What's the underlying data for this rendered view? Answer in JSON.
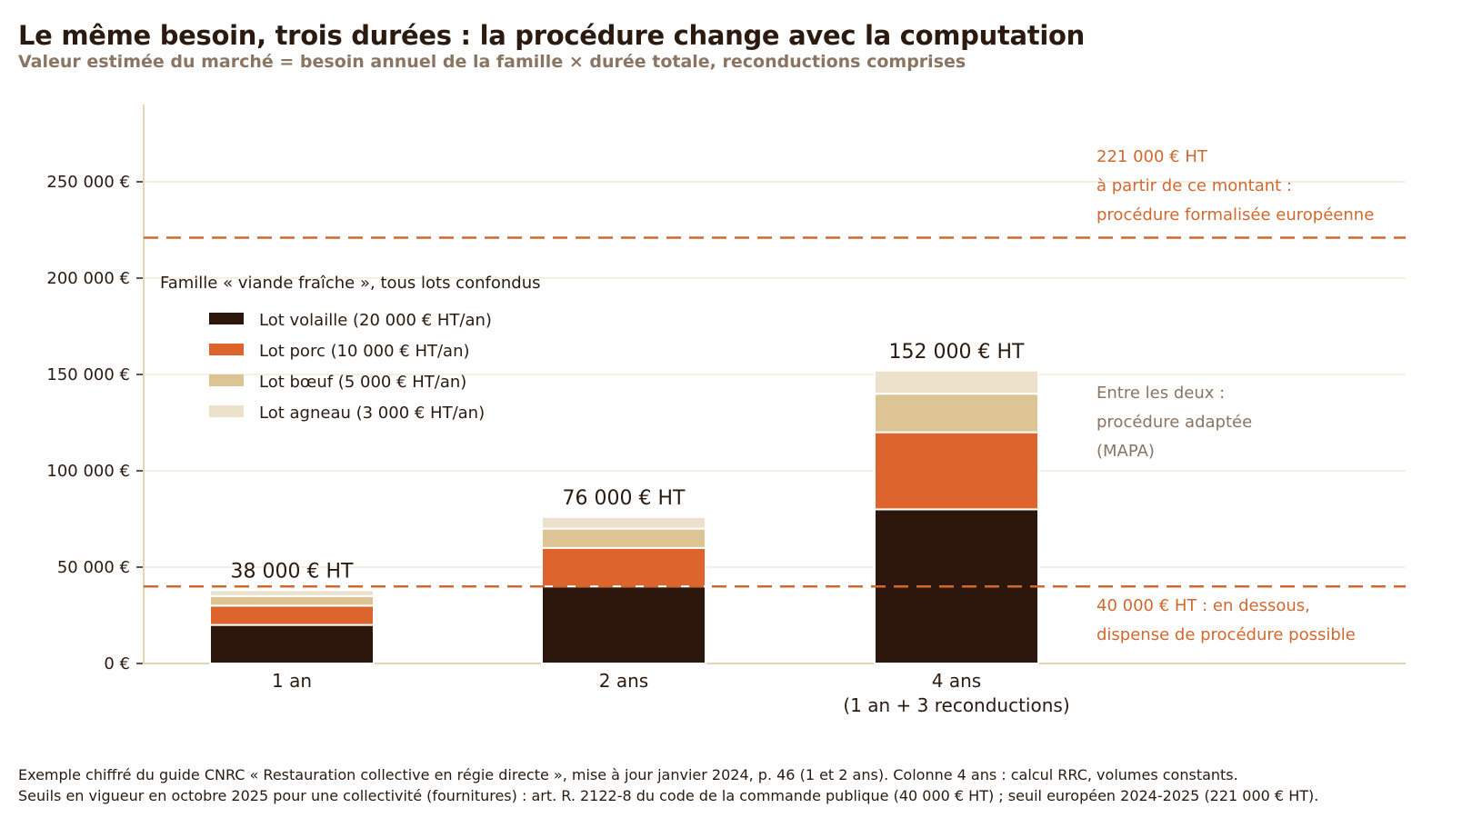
{
  "title": "Le même besoin, trois durées : la procédure change avec la computation",
  "subtitle": "Valeur estimée du marché = besoin annuel de la famille × durée totale, reconductions comprises",
  "footer": {
    "line1": "Exemple chiffré du guide CNRC « Restauration collective en régie directe », mise à jour janvier 2024, p. 46 (1 et 2 ans). Colonne 4 ans : calcul RRC, volumes constants.",
    "line2": "Seuils en vigueur en octobre 2025 pour une collectivité (fournitures) : art. R. 2122-8 du code de la commande publique (40 000 € HT) ; seuil européen 2024-2025 (221 000 € HT)."
  },
  "colors": {
    "volaille": "#2d170c",
    "porc": "#dd642c",
    "boeuf": "#dcc495",
    "agneau": "#ece2cb",
    "threshold": "#d0692f",
    "grid": "#ece6d2",
    "axis": "#dcc89a",
    "muted": "#8a7563"
  },
  "chart_data": {
    "type": "bar",
    "stacked": true,
    "categories": [
      [
        "1 an"
      ],
      [
        "2 ans"
      ],
      [
        "4 ans",
        "(1 an + 3 reconductions)"
      ]
    ],
    "series": [
      {
        "name": "Lot volaille (20 000 € HT/an)",
        "key": "volaille",
        "values": [
          20000,
          40000,
          80000
        ]
      },
      {
        "name": "Lot porc (10 000 € HT/an)",
        "key": "porc",
        "values": [
          10000,
          20000,
          40000
        ]
      },
      {
        "name": "Lot bœuf (5 000 € HT/an)",
        "key": "boeuf",
        "values": [
          5000,
          10000,
          20000
        ]
      },
      {
        "name": "Lot agneau (3 000 € HT/an)",
        "key": "agneau",
        "values": [
          3000,
          6000,
          12000
        ]
      }
    ],
    "totals": [
      "38 000 € HT",
      "76 000 € HT",
      "152 000 € HT"
    ],
    "ylim": [
      0,
      270000
    ],
    "yticks": [
      {
        "value": 0,
        "label": "0 €"
      },
      {
        "value": 50000,
        "label": "50 000 €"
      },
      {
        "value": 100000,
        "label": "100 000 €"
      },
      {
        "value": 150000,
        "label": "150 000 €"
      },
      {
        "value": 200000,
        "label": "200 000 €"
      },
      {
        "value": 250000,
        "label": "250 000 €"
      }
    ],
    "grid": true,
    "legend": {
      "title": "Famille « viande fraîche », tous lots confondus",
      "position": "upper-left"
    },
    "thresholds": [
      {
        "value": 40000,
        "lines": [
          "40 000 € HT : en dessous,",
          "dispense de procédure possible"
        ]
      },
      {
        "value": 221000,
        "lines": [
          "221 000 € HT",
          "à partir de ce montant :",
          "procédure formalisée européenne"
        ]
      }
    ],
    "between_note": [
      "Entre les deux :",
      "procédure adaptée",
      "(MAPA)"
    ]
  }
}
